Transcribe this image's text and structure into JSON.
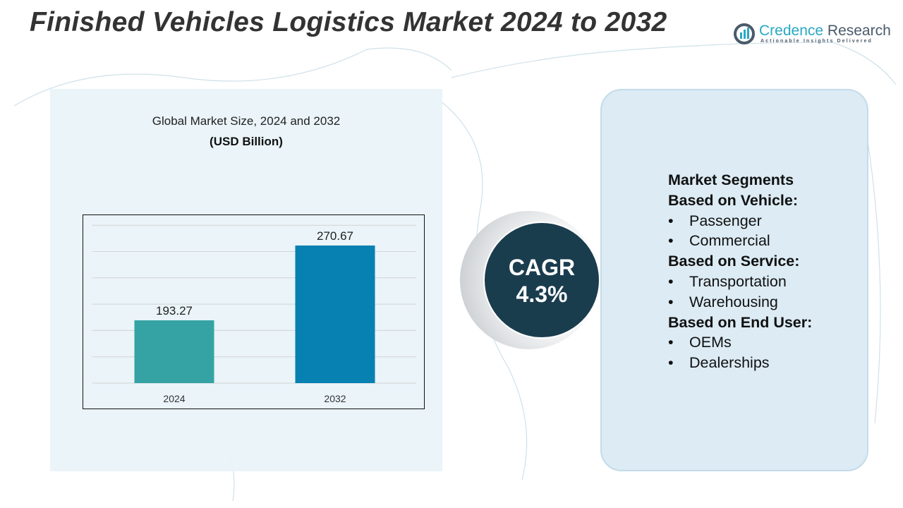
{
  "title": "Finished Vehicles Logistics Market 2024 to 2032",
  "logo": {
    "brand_part1": "Credence",
    "brand_part2": "Research",
    "tagline": "Actionable Insights Delivered"
  },
  "chart_data": {
    "type": "bar",
    "title": "Global Market Size, 2024 and 2032",
    "unit": "(USD Billion)",
    "categories": [
      "2024",
      "2032"
    ],
    "values": [
      193.27,
      270.67
    ],
    "value_labels": [
      "193.27",
      "270.67"
    ],
    "colors": [
      "#35a3a3",
      "#0780b2"
    ],
    "grid": true,
    "legend": "none"
  },
  "cagr": {
    "label": "CAGR",
    "value": "4.3%"
  },
  "segments": {
    "heading": "Market Segments",
    "groups": [
      {
        "title": "Based on Vehicle:",
        "items": [
          "Passenger",
          "Commercial"
        ]
      },
      {
        "title": "Based on Service:",
        "items": [
          "Transportation",
          "Warehousing"
        ]
      },
      {
        "title": "Based on End User:",
        "items": [
          "OEMs",
          "Dealerships"
        ]
      }
    ]
  }
}
